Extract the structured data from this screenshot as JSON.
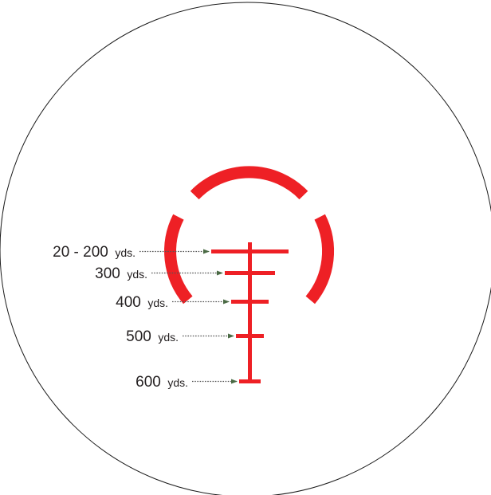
{
  "colors": {
    "reticle": "#ee2025",
    "outline": "#1a1a1a",
    "leader": "#555555",
    "arrow": "#4a6a44",
    "text": "#231f20"
  },
  "range_labels": [
    {
      "value": "20 - 200",
      "unit": "yds."
    },
    {
      "value": "300",
      "unit": "yds."
    },
    {
      "value": "400",
      "unit": "yds."
    },
    {
      "value": "500",
      "unit": "yds."
    },
    {
      "value": "600",
      "unit": "yds."
    }
  ]
}
